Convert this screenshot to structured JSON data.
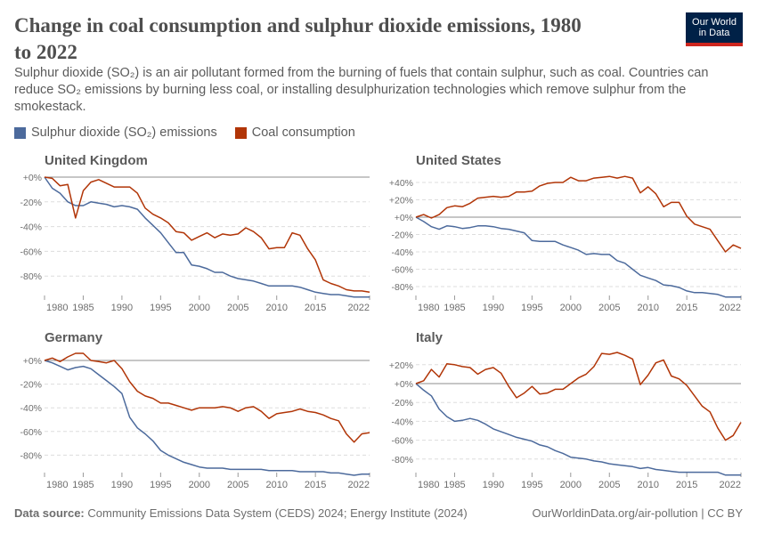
{
  "header": {
    "title": "Change in coal consumption and sulphur dioxide emissions, 1980 to 2022",
    "subtitle": "Sulphur dioxide (SO₂) is an air pollutant formed from the burning of fuels that contain sulphur, such as coal. Countries can reduce SO₂ emissions by burning less coal, or installing desulphurization technologies which remove sulphur from the smokestack.",
    "logo_line1": "Our World",
    "logo_line2": "in Data"
  },
  "legend": [
    {
      "name": "Sulphur dioxide (SO₂) emissions",
      "color": "#4c6a9c"
    },
    {
      "name": "Coal consumption",
      "color": "#b13507"
    }
  ],
  "footer": {
    "source_label": "Data source:",
    "source_text": "Community Emissions Data System (CEDS) 2024; Energy Institute (2024)",
    "right": "OurWorldinData.org/air-pollution | CC BY"
  },
  "chart_data": [
    {
      "type": "line",
      "title": "United Kingdom",
      "x_start": 1980,
      "x_end": 2022,
      "x_ticks": [
        "1980",
        "1985",
        "1990",
        "1995",
        "2000",
        "2005",
        "2010",
        "2015",
        "2022"
      ],
      "y_ticks": [
        "+0%",
        "-20%",
        "-40%",
        "-60%",
        "-80%"
      ],
      "ylim": [
        -97,
        0
      ],
      "series": [
        {
          "name": "Sulphur dioxide (SO₂) emissions",
          "values": [
            0,
            -9,
            -13,
            -20,
            -23,
            -23,
            -20,
            -21,
            -22,
            -24,
            -23,
            -24,
            -26,
            -33,
            -39,
            -45,
            -53,
            -61,
            -61,
            -71,
            -72,
            -74,
            -77,
            -77,
            -80,
            -82,
            -83,
            -84,
            -86,
            -88,
            -88,
            -88,
            -88,
            -89,
            -91,
            -93,
            -94,
            -95,
            -95,
            -96,
            -97,
            -97,
            -97
          ]
        },
        {
          "name": "Coal consumption",
          "values": [
            0,
            -1,
            -7,
            -6,
            -33,
            -11,
            -4,
            -2,
            -5,
            -8,
            -8,
            -8,
            -13,
            -25,
            -30,
            -33,
            -37,
            -44,
            -45,
            -51,
            -48,
            -45,
            -49,
            -46,
            -47,
            -46,
            -41,
            -44,
            -49,
            -58,
            -57,
            -57,
            -45,
            -47,
            -58,
            -67,
            -83,
            -86,
            -88,
            -91,
            -92,
            -92,
            -93
          ]
        }
      ]
    },
    {
      "type": "line",
      "title": "United States",
      "x_start": 1980,
      "x_end": 2022,
      "x_ticks": [
        "1980",
        "1985",
        "1990",
        "1995",
        "2000",
        "2005",
        "2010",
        "2015",
        "2022"
      ],
      "y_ticks": [
        "+40%",
        "+20%",
        "+0%",
        "-20%",
        "-40%",
        "-60%",
        "-80%"
      ],
      "ylim": [
        -92,
        47
      ],
      "series": [
        {
          "name": "Sulphur dioxide (SO₂) emissions",
          "values": [
            0,
            -5,
            -11,
            -14,
            -10,
            -11,
            -13,
            -12,
            -10,
            -10,
            -11,
            -13,
            -14,
            -16,
            -18,
            -27,
            -28,
            -28,
            -28,
            -32,
            -35,
            -38,
            -43,
            -42,
            -43,
            -43,
            -50,
            -53,
            -60,
            -67,
            -70,
            -73,
            -78,
            -79,
            -81,
            -85,
            -87,
            -87,
            -88,
            -89,
            -92,
            -92,
            -92
          ]
        },
        {
          "name": "Coal consumption",
          "values": [
            0,
            3,
            -1,
            3,
            11,
            13,
            12,
            16,
            22,
            23,
            24,
            23,
            24,
            29,
            29,
            30,
            36,
            39,
            40,
            40,
            46,
            42,
            42,
            45,
            46,
            47,
            45,
            47,
            45,
            28,
            35,
            27,
            12,
            17,
            17,
            1,
            -8,
            -11,
            -14,
            -27,
            -40,
            -32,
            -36
          ]
        }
      ]
    },
    {
      "type": "line",
      "title": "Germany",
      "x_start": 1980,
      "x_end": 2022,
      "x_ticks": [
        "1980",
        "1985",
        "1990",
        "1995",
        "2000",
        "2005",
        "2010",
        "2015",
        "2022"
      ],
      "y_ticks": [
        "+0%",
        "-20%",
        "-40%",
        "-60%",
        "-80%"
      ],
      "ylim": [
        -97,
        6
      ],
      "series": [
        {
          "name": "Sulphur dioxide (SO₂) emissions",
          "values": [
            0,
            -2,
            -5,
            -8,
            -6,
            -5,
            -7,
            -12,
            -17,
            -22,
            -28,
            -48,
            -57,
            -62,
            -68,
            -76,
            -80,
            -83,
            -86,
            -88,
            -90,
            -91,
            -91,
            -91,
            -92,
            -92,
            -92,
            -92,
            -92,
            -93,
            -93,
            -93,
            -93,
            -94,
            -94,
            -94,
            -94,
            -95,
            -95,
            -96,
            -97,
            -96,
            -96
          ]
        },
        {
          "name": "Coal consumption",
          "values": [
            0,
            2,
            -1,
            3,
            6,
            6,
            0,
            -1,
            -2,
            0,
            -7,
            -18,
            -26,
            -30,
            -32,
            -36,
            -36,
            -38,
            -40,
            -42,
            -40,
            -40,
            -40,
            -39,
            -40,
            -43,
            -40,
            -39,
            -43,
            -49,
            -45,
            -44,
            -43,
            -41,
            -43,
            -44,
            -46,
            -49,
            -51,
            -62,
            -69,
            -62,
            -61
          ]
        }
      ]
    },
    {
      "type": "line",
      "title": "Italy",
      "x_start": 1980,
      "x_end": 2022,
      "x_ticks": [
        "1980",
        "1985",
        "1990",
        "1995",
        "2000",
        "2005",
        "2010",
        "2015",
        "2022"
      ],
      "y_ticks": [
        "+20%",
        "+0%",
        "-20%",
        "-40%",
        "-60%",
        "-80%"
      ],
      "ylim": [
        -97,
        33
      ],
      "series": [
        {
          "name": "Sulphur dioxide (SO₂) emissions",
          "values": [
            0,
            -7,
            -13,
            -27,
            -35,
            -40,
            -39,
            -37,
            -39,
            -43,
            -48,
            -51,
            -54,
            -57,
            -59,
            -61,
            -65,
            -67,
            -71,
            -74,
            -78,
            -79,
            -80,
            -82,
            -83,
            -85,
            -86,
            -87,
            -88,
            -90,
            -89,
            -91,
            -92,
            -93,
            -94,
            -94,
            -94,
            -94,
            -94,
            -94,
            -97,
            -97,
            -97
          ]
        },
        {
          "name": "Coal consumption",
          "values": [
            0,
            3,
            15,
            7,
            21,
            20,
            18,
            17,
            10,
            15,
            17,
            11,
            -3,
            -15,
            -10,
            -3,
            -11,
            -10,
            -6,
            -6,
            0,
            6,
            10,
            18,
            32,
            31,
            33,
            30,
            26,
            -1,
            9,
            22,
            25,
            8,
            5,
            -2,
            -13,
            -24,
            -30,
            -47,
            -60,
            -55,
            -41
          ]
        }
      ]
    }
  ]
}
